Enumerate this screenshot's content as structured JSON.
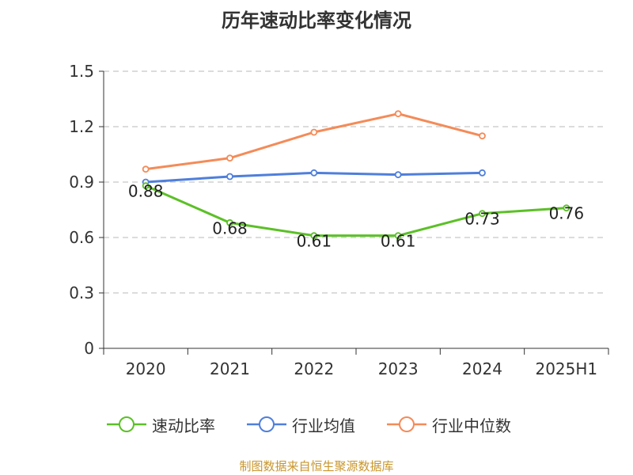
{
  "chart_data": {
    "type": "line",
    "title": "历年速动比率变化情况",
    "categories": [
      "2020",
      "2021",
      "2022",
      "2023",
      "2024",
      "2025H1"
    ],
    "ylim": [
      0,
      1.5
    ],
    "yticks": [
      "0",
      "0.3",
      "0.6",
      "0.9",
      "1.2",
      "1.5"
    ],
    "ytick_values": [
      0,
      0.3,
      0.6,
      0.9,
      1.2,
      1.5
    ],
    "grid": true,
    "legend_position": "bottom",
    "series": [
      {
        "name": "速动比率",
        "color": "#5cc027",
        "values": [
          0.88,
          0.68,
          0.61,
          0.61,
          0.73,
          0.76
        ],
        "labels": [
          "0.88",
          "0.68",
          "0.61",
          "0.61",
          "0.73",
          "0.76"
        ]
      },
      {
        "name": "行业均值",
        "color": "#4f7fdb",
        "values": [
          0.9,
          0.93,
          0.95,
          0.94,
          0.95,
          null
        ]
      },
      {
        "name": "行业中位数",
        "color": "#f48b58",
        "values": [
          0.97,
          1.03,
          1.17,
          1.27,
          1.15,
          null
        ]
      }
    ]
  },
  "source_note": "制图数据来自恒生聚源数据库"
}
